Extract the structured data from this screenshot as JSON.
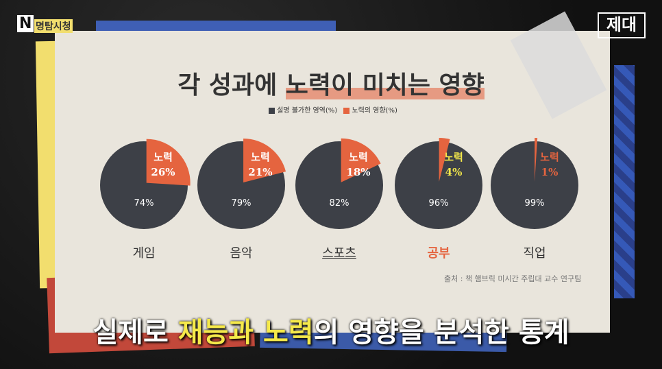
{
  "logo": {
    "left": "N 명탐시청",
    "right": "제대"
  },
  "title_pre": "각 성과에 ",
  "title_hl": "노력이 미치는 영향",
  "legend": [
    {
      "label": "설명 불가한 영역(%)",
      "color": "#3d4047"
    },
    {
      "label": "노력의 영향(%)",
      "color": "#e5643f"
    }
  ],
  "chart_data": {
    "type": "pie",
    "title": "각 성과에 노력이 미치는 영향",
    "categories": [
      "게임",
      "음악",
      "스포츠",
      "공부",
      "직업"
    ],
    "series": [
      {
        "name": "설명 불가한 영역(%)",
        "values": [
          74,
          79,
          82,
          96,
          99
        ]
      },
      {
        "name": "노력의 영향(%)",
        "values": [
          26,
          21,
          18,
          4,
          1
        ]
      }
    ],
    "slice_label": "노력",
    "highlight_category": "공부"
  },
  "source": "출처 : 책 햄브릭 미시간 주립대 교수 연구팀",
  "subtitle": {
    "a": "실제로 ",
    "b": "재능과 노력",
    "c": "의 영향을 분석한 통계"
  }
}
